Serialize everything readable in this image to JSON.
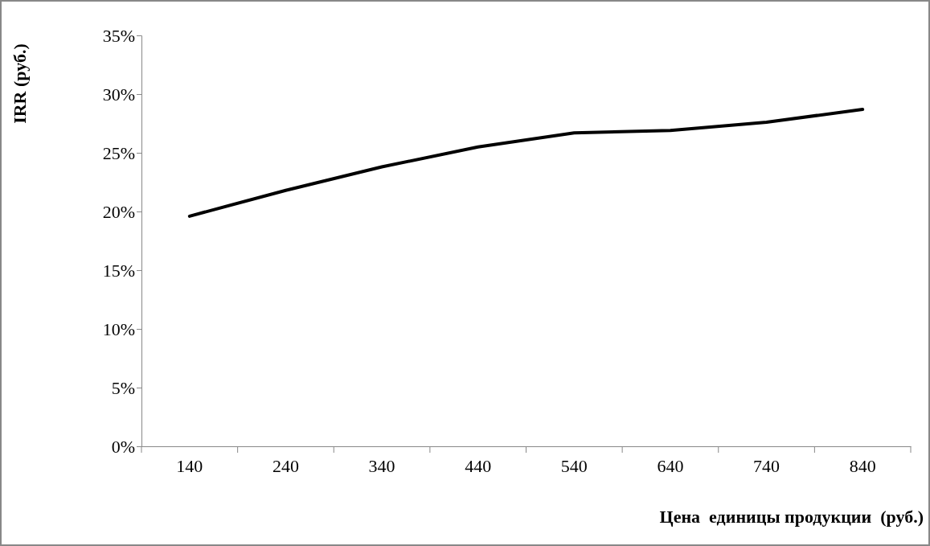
{
  "chart_data": {
    "type": "line",
    "xlabel": "Цена  единицы продукции  (руб.)",
    "ylabel": "IRR (руб.)",
    "categories": [
      "140",
      "240",
      "340",
      "440",
      "540",
      "640",
      "740",
      "840"
    ],
    "series": [
      {
        "color": "#000000",
        "values": [
          19.6,
          21.8,
          23.8,
          25.5,
          26.7,
          26.9,
          27.6,
          28.7
        ]
      }
    ],
    "ylim": [
      0,
      35
    ],
    "yticks": [
      {
        "value": 0,
        "label": "0%"
      },
      {
        "value": 5,
        "label": "5%"
      },
      {
        "value": 10,
        "label": "10%"
      },
      {
        "value": 15,
        "label": "15%"
      },
      {
        "value": 20,
        "label": "20%"
      },
      {
        "value": 25,
        "label": "25%"
      },
      {
        "value": 30,
        "label": "30%"
      },
      {
        "value": 35,
        "label": "35%"
      }
    ],
    "grid": false,
    "marker": "none",
    "line_style": "solid"
  }
}
